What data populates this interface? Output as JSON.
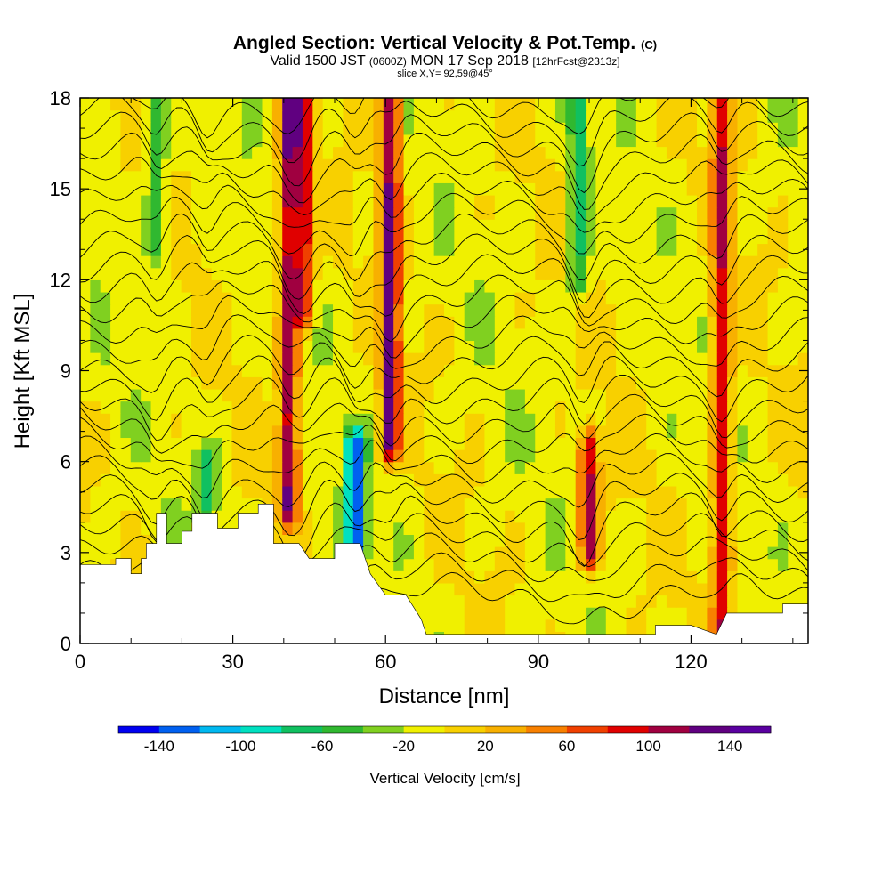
{
  "title": {
    "main": "Angled Section: Vertical Velocity & Pot.Temp.",
    "units_tag": "(C)",
    "valid_prefix": "Valid 1500 JST",
    "valid_utc": "(0600Z)",
    "valid_date": "MON 17 Sep 2018",
    "forecast": "[12hrFcst@2313z]",
    "slice": "slice X,Y= 92,59@45°"
  },
  "chart_data": {
    "type": "heatmap",
    "xlabel": "Distance [nm]",
    "ylabel": "Height [Kft MSL]",
    "xlim": [
      0,
      143
    ],
    "ylim": [
      0,
      18
    ],
    "x_ticks": [
      0,
      30,
      60,
      90,
      120
    ],
    "y_ticks": [
      0,
      3,
      6,
      9,
      12,
      15,
      18
    ],
    "grid": false,
    "colorbar": {
      "title": "Vertical Velocity [cm/s]",
      "tick_labels": [
        "-140",
        "-100",
        "-60",
        "-20",
        "20",
        "60",
        "100",
        "140"
      ],
      "tick_values": [
        -140,
        -100,
        -60,
        -20,
        20,
        60,
        100,
        140
      ],
      "range": [
        -160,
        160
      ],
      "step": 20,
      "colors": [
        "#0000f0",
        "#0060f0",
        "#00b8f0",
        "#00e0c0",
        "#10c060",
        "#30b830",
        "#80d020",
        "#f0f000",
        "#f8d000",
        "#f8b000",
        "#f88000",
        "#f04000",
        "#e00000",
        "#a00040",
        "#600080",
        "#5a00a0"
      ]
    },
    "updrafts": [
      {
        "x": 41,
        "w_max": 120,
        "z_bottom": 4.5,
        "z_top": 18
      },
      {
        "x": 61,
        "w_max": 130,
        "z_bottom": 6.5,
        "z_top": 18
      },
      {
        "x": 100,
        "w_max": 110,
        "z_bottom": 3.0,
        "z_top": 6.5
      },
      {
        "x": 126,
        "w_max": 100,
        "z_bottom": 0.5,
        "z_top": 18
      },
      {
        "x": 44,
        "w_max": 100,
        "z_bottom": 11,
        "z_top": 18
      }
    ],
    "downdrafts": [
      {
        "x": 54,
        "w_min": -130,
        "z_bottom": 3.0,
        "z_top": 6.5
      },
      {
        "x": 98,
        "w_min": -60,
        "z_bottom": 12,
        "z_top": 18
      },
      {
        "x": 25,
        "w_min": -60,
        "z_bottom": 4.5,
        "z_top": 6.0
      },
      {
        "x": 15,
        "w_min": -50,
        "z_bottom": 13,
        "z_top": 18
      }
    ],
    "terrain": [
      [
        0,
        2.6
      ],
      [
        7,
        2.6
      ],
      [
        7,
        2.8
      ],
      [
        10,
        2.8
      ],
      [
        10,
        2.3
      ],
      [
        12,
        2.3
      ],
      [
        12,
        2.8
      ],
      [
        13,
        2.8
      ],
      [
        13,
        3.3
      ],
      [
        15,
        3.3
      ],
      [
        15,
        4.3
      ],
      [
        17,
        4.3
      ],
      [
        17,
        3.3
      ],
      [
        20,
        3.3
      ],
      [
        20,
        3.7
      ],
      [
        22,
        3.7
      ],
      [
        22,
        4.3
      ],
      [
        27,
        4.3
      ],
      [
        27,
        3.8
      ],
      [
        31,
        3.8
      ],
      [
        31,
        4.3
      ],
      [
        35,
        4.3
      ],
      [
        35,
        4.6
      ],
      [
        38,
        4.6
      ],
      [
        38,
        3.3
      ],
      [
        43,
        3.3
      ],
      [
        45,
        2.8
      ],
      [
        50,
        2.8
      ],
      [
        50,
        3.3
      ],
      [
        55,
        3.3
      ],
      [
        57,
        2.3
      ],
      [
        60,
        1.6
      ],
      [
        64,
        1.6
      ],
      [
        67,
        0.8
      ],
      [
        68,
        0.3
      ],
      [
        113,
        0.3
      ],
      [
        113,
        0.6
      ],
      [
        120,
        0.6
      ],
      [
        125,
        0.3
      ],
      [
        127,
        1.0
      ],
      [
        138,
        1.0
      ],
      [
        138,
        1.3
      ],
      [
        143,
        1.3
      ]
    ],
    "isentropes_count": 26
  }
}
